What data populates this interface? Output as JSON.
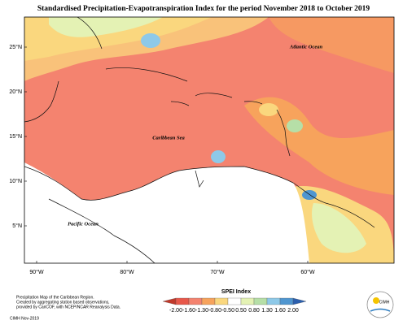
{
  "header": {
    "title": "Standardised Precipitation-Evapotranspiration Index for the period November 2018 to October 2019"
  },
  "map": {
    "labels": [
      "Atlantic Ocean",
      "Caribbean Sea",
      "Pacific Ocean"
    ],
    "lat_ticks": [
      "25°N",
      "20°N",
      "15°N",
      "10°N",
      "5°N"
    ],
    "lon_ticks": [
      "90°W",
      "80°W",
      "70°W",
      "60°W"
    ]
  },
  "legend": {
    "title": "SPEI Index",
    "labels": [
      "-2.00",
      "-1.60",
      "-1.30",
      "-0.80",
      "-0.50",
      "0.50",
      "0.80",
      "1.30",
      "1.60",
      "2.00"
    ],
    "colors": [
      "#c0392b",
      "#e8584a",
      "#f4836f",
      "#f7a35c",
      "#fad77e",
      "#ffffff",
      "#e4f2b4",
      "#b6dfa7",
      "#8ec9e8",
      "#4f96d0",
      "#2b5fae"
    ]
  },
  "footer": {
    "lines": [
      "Precipitation Map of the Caribbean Region.",
      "Created by aggregating station based observations,",
      "provided by CariCOF, with NCEP/NCAR Reanalysis Data."
    ],
    "credit": "CIMH Nov-2019",
    "logo": "CIMH"
  }
}
